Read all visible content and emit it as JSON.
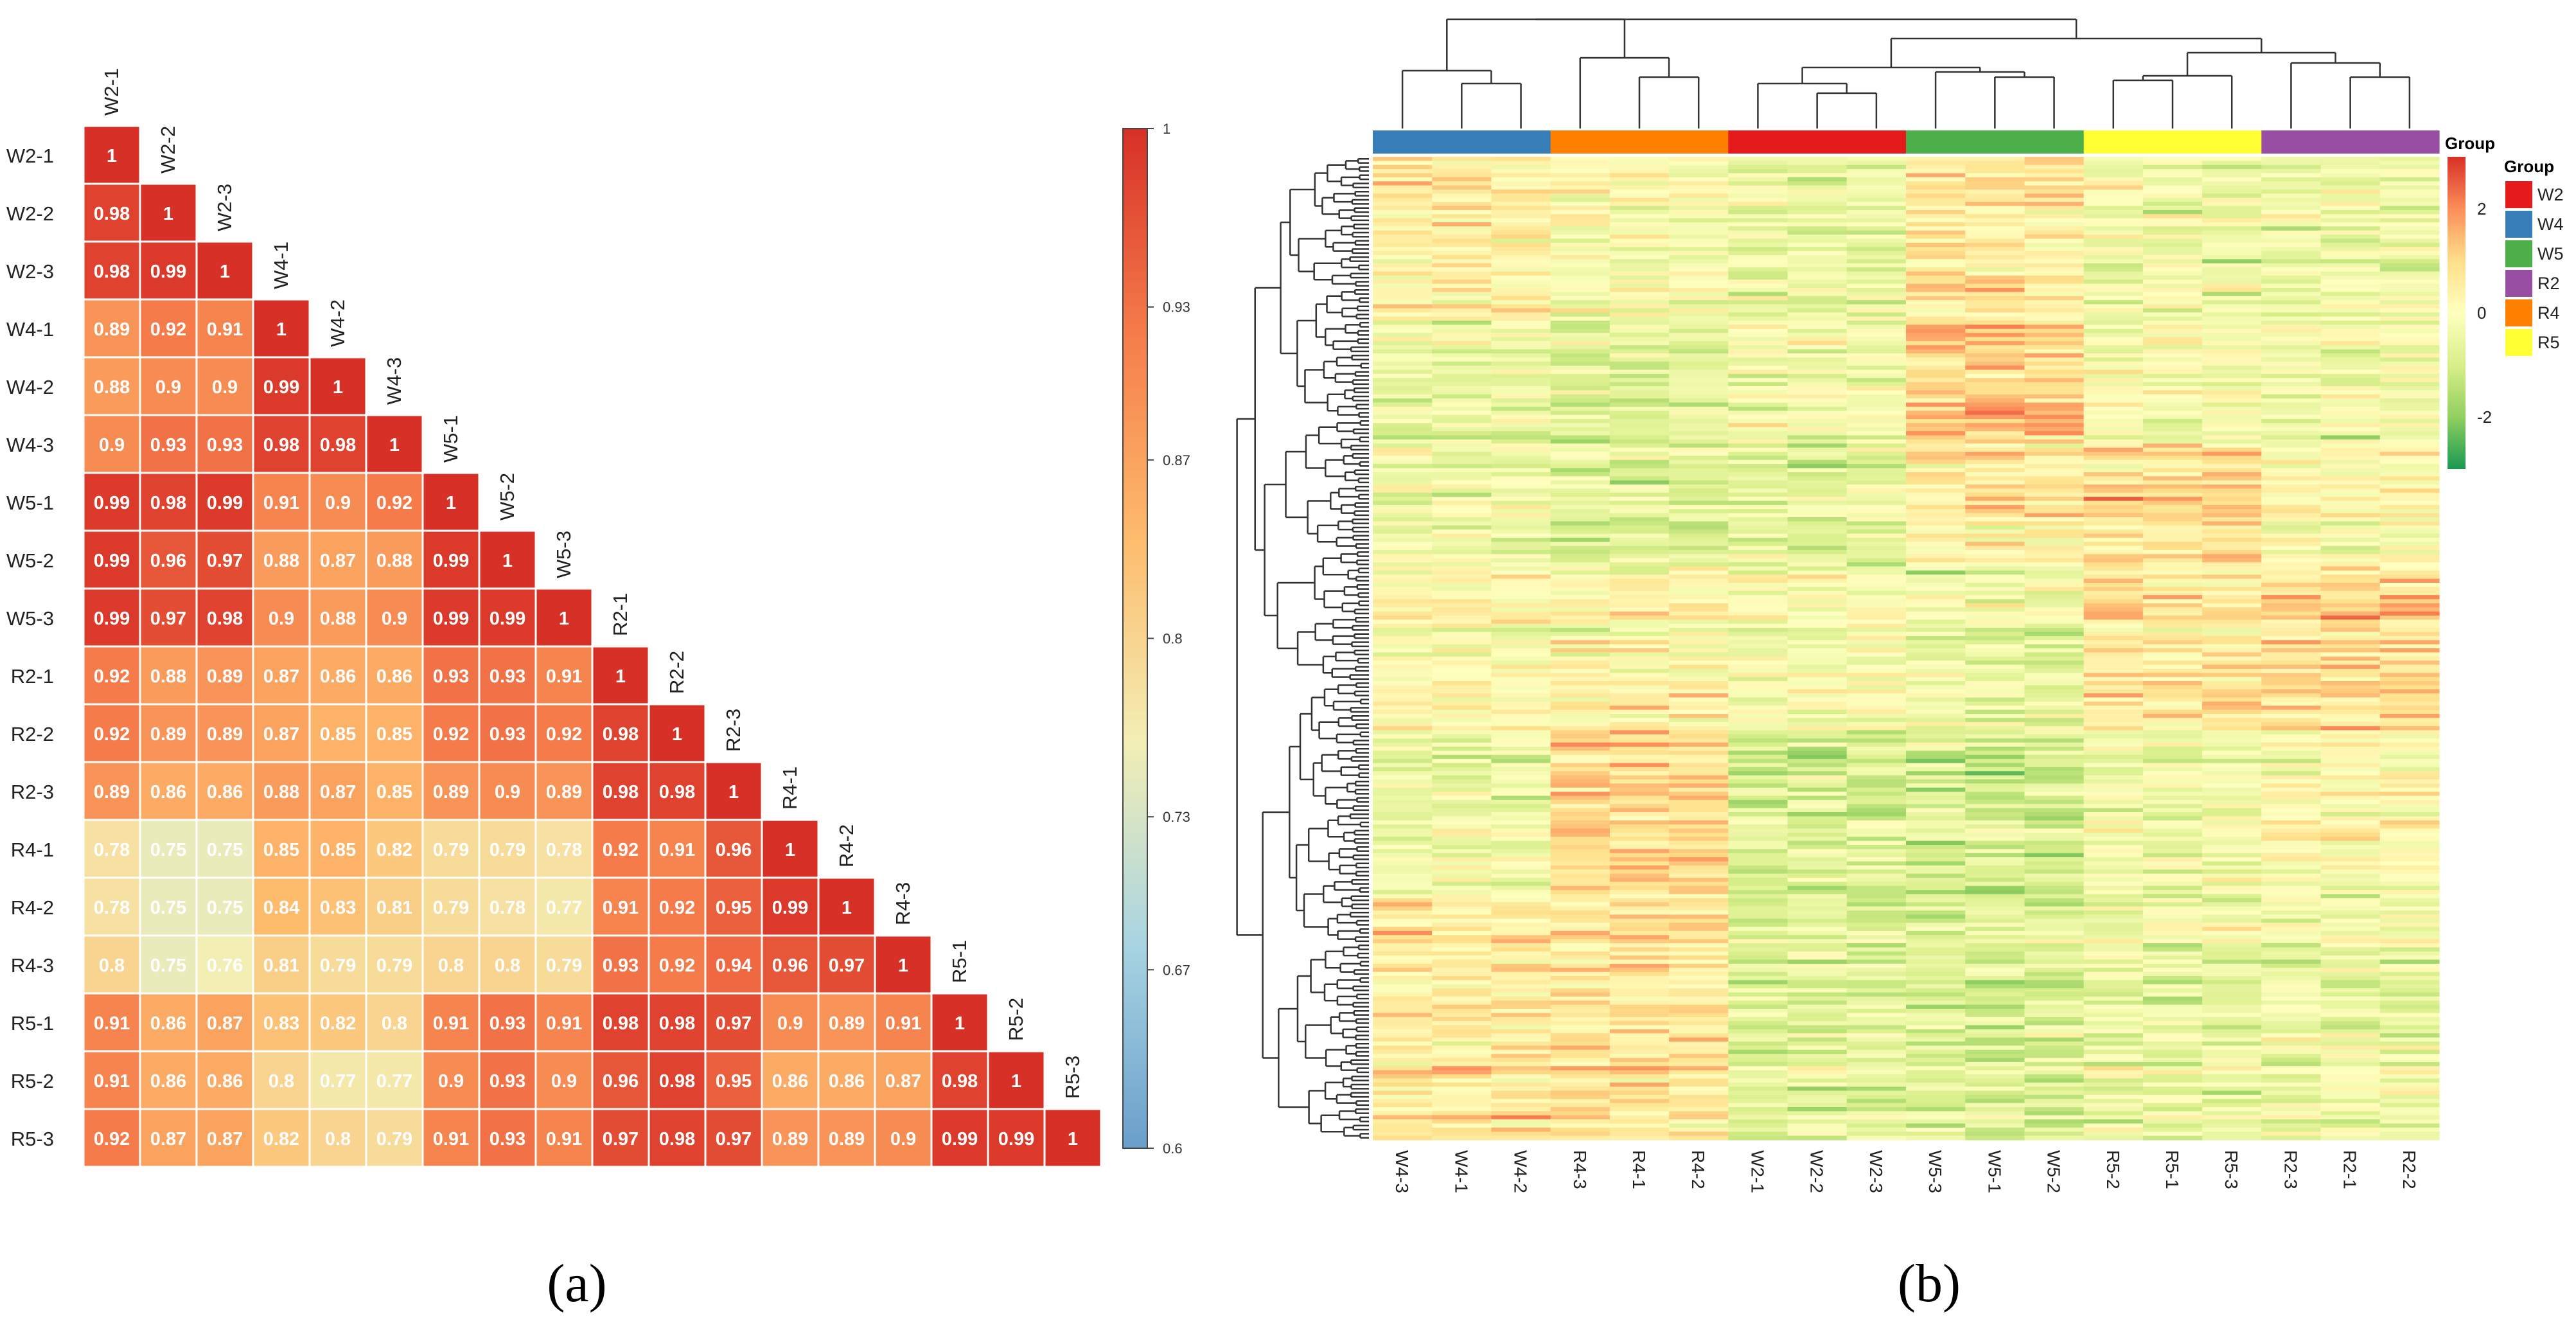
{
  "chart_data": [
    {
      "type": "heatmap",
      "panel_label": "(a)",
      "title": "",
      "samples": [
        "W2-1",
        "W2-2",
        "W2-3",
        "W4-1",
        "W4-2",
        "W4-3",
        "W5-1",
        "W5-2",
        "W5-3",
        "R2-1",
        "R2-2",
        "R2-3",
        "R4-1",
        "R4-2",
        "R4-3",
        "R5-1",
        "R5-2",
        "R5-3"
      ],
      "lower_triangle": [
        [
          1
        ],
        [
          0.98,
          1
        ],
        [
          0.98,
          0.99,
          1
        ],
        [
          0.89,
          0.92,
          0.91,
          1
        ],
        [
          0.88,
          0.9,
          0.9,
          0.99,
          1
        ],
        [
          0.9,
          0.93,
          0.93,
          0.98,
          0.98,
          1
        ],
        [
          0.99,
          0.98,
          0.99,
          0.91,
          0.9,
          0.92,
          1
        ],
        [
          0.99,
          0.96,
          0.97,
          0.88,
          0.87,
          0.88,
          0.99,
          1
        ],
        [
          0.99,
          0.97,
          0.98,
          0.9,
          0.88,
          0.9,
          0.99,
          0.99,
          1
        ],
        [
          0.92,
          0.88,
          0.89,
          0.87,
          0.86,
          0.86,
          0.93,
          0.93,
          0.91,
          1
        ],
        [
          0.92,
          0.89,
          0.89,
          0.87,
          0.85,
          0.85,
          0.92,
          0.93,
          0.92,
          0.98,
          1
        ],
        [
          0.89,
          0.86,
          0.86,
          0.88,
          0.87,
          0.85,
          0.89,
          0.9,
          0.89,
          0.98,
          0.98,
          1
        ],
        [
          0.78,
          0.75,
          0.75,
          0.85,
          0.85,
          0.82,
          0.79,
          0.79,
          0.78,
          0.92,
          0.91,
          0.96,
          1
        ],
        [
          0.78,
          0.75,
          0.75,
          0.84,
          0.83,
          0.81,
          0.79,
          0.78,
          0.77,
          0.91,
          0.92,
          0.95,
          0.99,
          1
        ],
        [
          0.8,
          0.75,
          0.76,
          0.81,
          0.79,
          0.79,
          0.8,
          0.8,
          0.79,
          0.93,
          0.92,
          0.94,
          0.96,
          0.97,
          1
        ],
        [
          0.91,
          0.86,
          0.87,
          0.83,
          0.82,
          0.8,
          0.91,
          0.93,
          0.91,
          0.98,
          0.98,
          0.97,
          0.9,
          0.89,
          0.91,
          1
        ],
        [
          0.91,
          0.86,
          0.86,
          0.8,
          0.77,
          0.77,
          0.9,
          0.93,
          0.9,
          0.96,
          0.98,
          0.95,
          0.86,
          0.86,
          0.87,
          0.98,
          1
        ],
        [
          0.92,
          0.87,
          0.87,
          0.82,
          0.8,
          0.79,
          0.91,
          0.93,
          0.91,
          0.97,
          0.98,
          0.97,
          0.89,
          0.89,
          0.9,
          0.99,
          0.99,
          1
        ]
      ],
      "colorbar": {
        "min": 0.6,
        "max": 1,
        "ticks": [
          0.6,
          0.67,
          0.73,
          0.8,
          0.87,
          0.93,
          1
        ],
        "tick_labels": [
          "0.6",
          "0.67",
          "0.73",
          "0.8",
          "0.87",
          "0.93",
          "1"
        ],
        "colors": [
          "#6a9fcb",
          "#a8d4e2",
          "#f3eeb4",
          "#fdbb6c",
          "#f57c4a",
          "#d73027"
        ]
      }
    },
    {
      "type": "heatmap",
      "panel_label": "(b)",
      "title": "",
      "column_order": [
        "W4-3",
        "W4-1",
        "W4-2",
        "R4-3",
        "R4-1",
        "R4-2",
        "W2-1",
        "W2-2",
        "W2-3",
        "W5-3",
        "W5-1",
        "W5-2",
        "R5-2",
        "R5-1",
        "R5-3",
        "R2-3",
        "R2-1",
        "R2-2"
      ],
      "column_groups": [
        "W4",
        "W4",
        "W4",
        "R4",
        "R4",
        "R4",
        "W2",
        "W2",
        "W2",
        "W5",
        "W5",
        "W5",
        "R5",
        "R5",
        "R5",
        "R2",
        "R2",
        "R2"
      ],
      "value_range": [
        -3,
        3
      ],
      "colorbar": {
        "ticks": [
          2,
          0,
          -2
        ],
        "tick_labels": [
          "2",
          "0",
          "-2"
        ],
        "colors": [
          "#1a9850",
          "#91cf60",
          "#d9ef8b",
          "#ffffbf",
          "#fee08b",
          "#fc8d59",
          "#d73027"
        ],
        "title": "Group"
      },
      "legend": {
        "title": "Group",
        "items": [
          {
            "label": "W2",
            "color": "#e41a1c"
          },
          {
            "label": "W4",
            "color": "#377eb8"
          },
          {
            "label": "W5",
            "color": "#4daf4a"
          },
          {
            "label": "R2",
            "color": "#984ea3"
          },
          {
            "label": "R4",
            "color": "#ff7f00"
          },
          {
            "label": "R5",
            "color": "#ffff33"
          }
        ]
      }
    }
  ]
}
